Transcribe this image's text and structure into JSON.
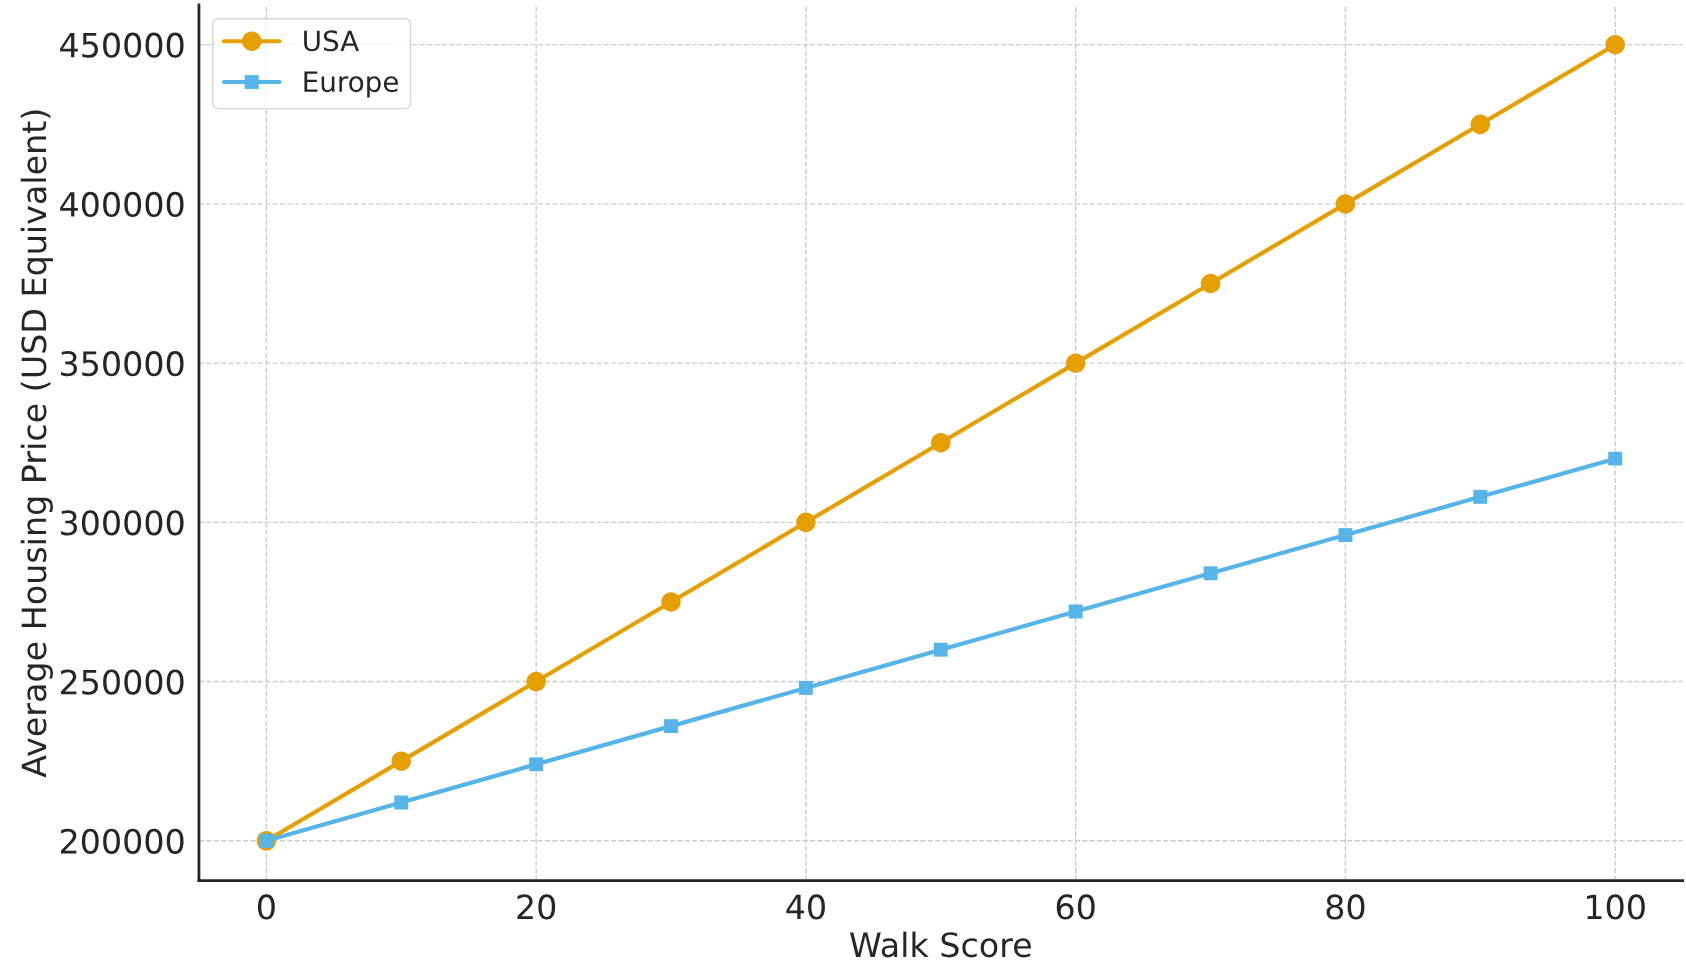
{
  "chart_data": {
    "type": "line",
    "xlabel": "Walk Score",
    "ylabel": "Average Housing Price (USD Equivalent)",
    "x": [
      0,
      10,
      20,
      30,
      40,
      50,
      60,
      70,
      80,
      90,
      100
    ],
    "series": [
      {
        "name": "USA",
        "color": "#e69f00",
        "marker": "circle",
        "values": [
          200000,
          225000,
          250000,
          275000,
          300000,
          325000,
          350000,
          375000,
          400000,
          425000,
          450000
        ]
      },
      {
        "name": "Europe",
        "color": "#56b4e9",
        "marker": "square",
        "values": [
          200000,
          212000,
          224000,
          236000,
          248000,
          260000,
          272000,
          284000,
          296000,
          308000,
          320000
        ]
      }
    ],
    "xlim": [
      -5,
      105
    ],
    "xticks": [
      0,
      20,
      40,
      60,
      80,
      100
    ],
    "ylim": [
      187500,
      462500
    ],
    "yticks": [
      200000,
      250000,
      300000,
      350000,
      400000,
      450000
    ],
    "grid": true,
    "legend": "top left",
    "line_style": "solid"
  }
}
